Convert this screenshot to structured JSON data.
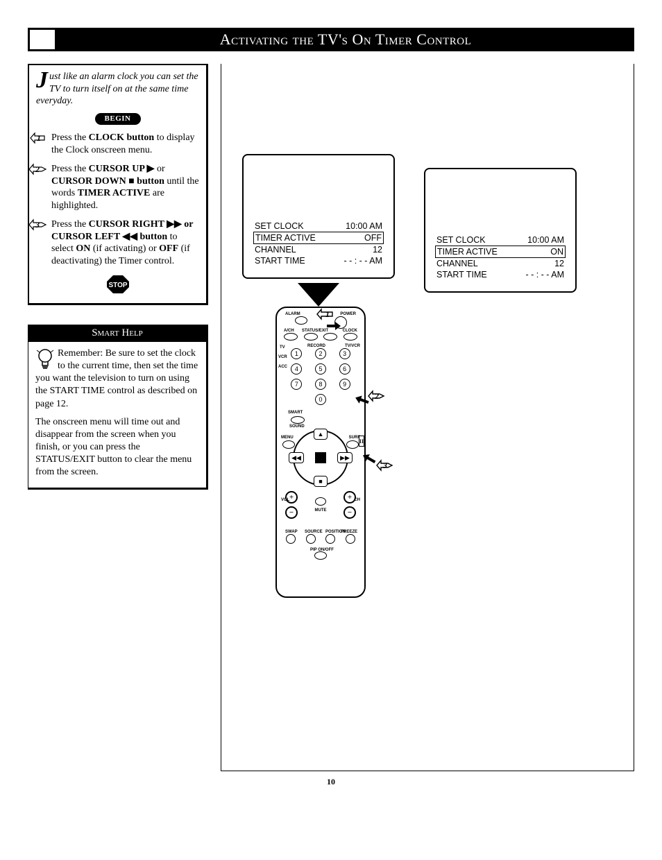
{
  "title": "Activating the TV's On Timer Control",
  "intro_first_letter": "J",
  "intro_rest": "ust like an alarm clock you can set the TV to turn itself on at the same time everyday.",
  "begin_label": "BEGIN",
  "steps": [
    {
      "num": "1",
      "html": "Press the <b>CLOCK button</b> to display the Clock onscreen menu."
    },
    {
      "num": "2",
      "html": "Press the <b>CURSOR UP ▶</b> or <b>CURSOR DOWN ■ button</b> until the words <b>TIMER ACTIVE</b> are highlighted."
    },
    {
      "num": "3",
      "html": "Press the <b>CURSOR RIGHT ▶▶ or CURSOR LEFT ◀◀ button</b> to select <b>ON</b> (if activating) or <b>OFF</b> (if deactivating) the Timer control."
    }
  ],
  "stop_label": "STOP",
  "smart_help": {
    "header": "Smart Help",
    "para1": "Remember: Be sure to set the clock to the current time, then set the time you want the television to turn on using the START TIME control as described on page 12.",
    "para2": "The onscreen menu will time out and disappear from the screen when you finish, or you can press the STATUS/EXIT button to clear the menu from the screen."
  },
  "tv_menu": {
    "rows": [
      {
        "label": "SET CLOCK",
        "value": "10:00  AM"
      },
      {
        "label": "TIMER ACTIVE",
        "value_off": "OFF",
        "value_on": "ON"
      },
      {
        "label": "CHANNEL",
        "value": "12"
      },
      {
        "label": "START TIME",
        "value": "- - : - - AM"
      }
    ]
  },
  "remote": {
    "top_labels": [
      "ALARM",
      "",
      "POWER"
    ],
    "small_labels": [
      "A/CH",
      "STATUS/EXIT",
      "",
      "CLOCK"
    ],
    "keypad": [
      "1",
      "2",
      "3",
      "4",
      "5",
      "6",
      "7",
      "8",
      "9",
      "0"
    ],
    "side_labels": {
      "tv": "TV",
      "vcr": "VCR",
      "acc": "ACC",
      "tvvcr": "TV/VCR",
      "record": "RECORD",
      "smart": "SMART",
      "sound": "SOUND",
      "menu": "MENU",
      "surf": "SURF",
      "vol": "VOL",
      "ch": "CH",
      "mute": "MUTE"
    },
    "pip_labels": [
      "SWAP",
      "SOURCE",
      "POSITION",
      "FREEZE"
    ],
    "pip_onoff": "PIP ON/OFF"
  },
  "callouts": [
    "1",
    "2",
    "3"
  ],
  "page_number": "10"
}
